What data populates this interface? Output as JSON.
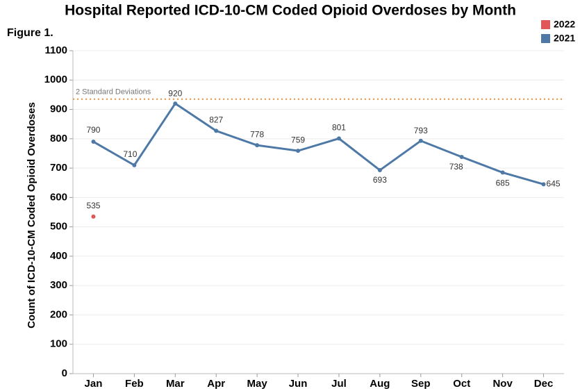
{
  "chart_data": {
    "type": "line",
    "title": "Hospital Reported ICD-10-CM Coded Opioid Overdoses by Month",
    "subtitle": "Figure 1.",
    "y_label": "Count of ICD-10-CM Coded Opioid Overdoses",
    "categories": [
      "Jan",
      "Feb",
      "Mar",
      "Apr",
      "May",
      "Jun",
      "Jul",
      "Aug",
      "Sep",
      "Oct",
      "Nov",
      "Dec"
    ],
    "series": [
      {
        "name": "2022",
        "color": "#e15759",
        "values": [
          535,
          null,
          null,
          null,
          null,
          null,
          null,
          null,
          null,
          null,
          null,
          null
        ]
      },
      {
        "name": "2021",
        "color": "#4e79a7",
        "values": [
          790,
          710,
          920,
          827,
          778,
          759,
          801,
          693,
          793,
          738,
          685,
          645
        ]
      }
    ],
    "reference_line": {
      "value": 935,
      "label": "2 Standard Deviations",
      "color": "#f28e2b"
    },
    "ylim": [
      0,
      1100
    ],
    "yticks": [
      0,
      100,
      200,
      300,
      400,
      500,
      600,
      700,
      800,
      900,
      1000,
      1100
    ],
    "grid": true,
    "legend": "top-right"
  }
}
